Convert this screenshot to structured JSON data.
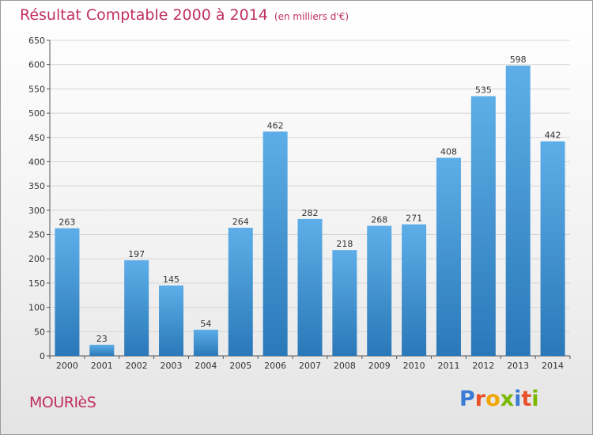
{
  "title": "Résultat Comptable 2000 à 2014",
  "subtitle": "(en milliers d'€)",
  "commune": "MOURIèS",
  "logo": {
    "text": "Proxiti",
    "colors": [
      "#3a7bd5",
      "#e8502a",
      "#f0a500",
      "#7ab800",
      "#3a7bd5",
      "#e8502a",
      "#7ab800"
    ]
  },
  "colors": {
    "bar_top": "#5daee8",
    "bar_bottom": "#2a78b8",
    "title": "#c0305e",
    "grid": "#d6d6d6"
  },
  "chart_data": {
    "type": "bar",
    "categories": [
      "2000",
      "2001",
      "2002",
      "2003",
      "2004",
      "2005",
      "2006",
      "2007",
      "2008",
      "2009",
      "2010",
      "2011",
      "2012",
      "2013",
      "2014"
    ],
    "values": [
      263,
      23,
      197,
      145,
      54,
      264,
      462,
      282,
      218,
      268,
      271,
      408,
      535,
      598,
      442
    ],
    "ylim": [
      0,
      650
    ],
    "yticks": [
      0,
      50,
      100,
      150,
      200,
      250,
      300,
      350,
      400,
      450,
      500,
      550,
      600,
      650
    ],
    "grid": true
  }
}
